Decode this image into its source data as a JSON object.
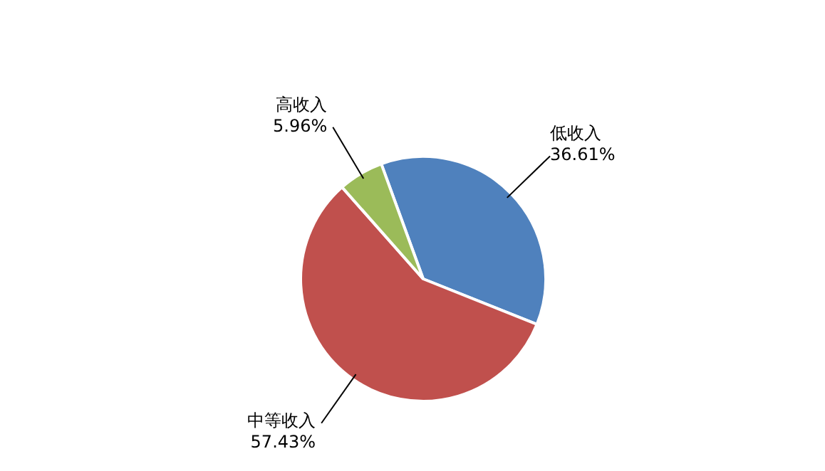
{
  "chart_data": {
    "type": "pie",
    "categories": [
      "低收入",
      "中等收入",
      "高收入"
    ],
    "values": [
      36.61,
      57.43,
      5.96
    ],
    "colors": [
      "#4f81bd",
      "#c0504d",
      "#9bbb59"
    ],
    "value_labels": [
      "36.61%",
      "57.43%",
      "5.96%"
    ],
    "legend": false
  }
}
